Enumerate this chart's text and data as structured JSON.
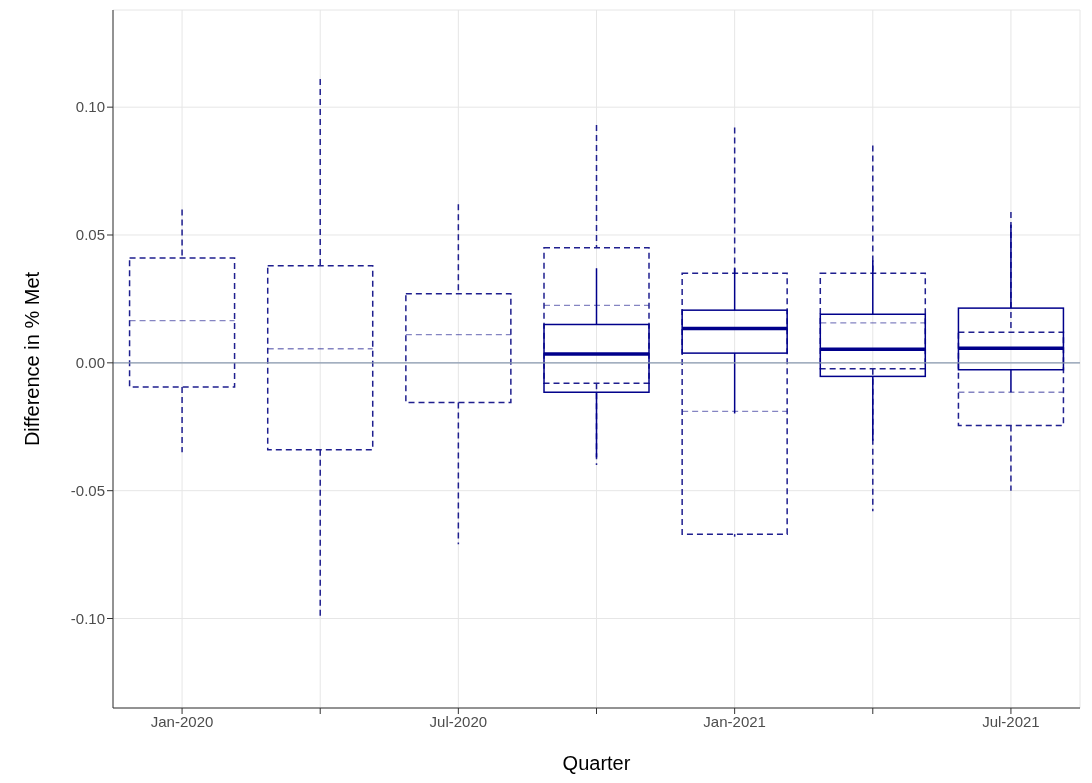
{
  "chart_data": {
    "type": "box",
    "xlabel": "Quarter",
    "ylabel": "Difference in % Met",
    "categories": [
      "Jan-2020",
      null,
      "Jul-2020",
      null,
      "Jan-2021",
      null,
      "Jul-2021"
    ],
    "ylim": [
      -0.135,
      0.138
    ],
    "yticks": [
      {
        "value": -0.1,
        "label": "-0.10"
      },
      {
        "value": -0.05,
        "label": "-0.05"
      },
      {
        "value": 0,
        "label": "0.00"
      },
      {
        "value": 0.05,
        "label": "0.05"
      },
      {
        "value": 0.1,
        "label": "0.10"
      }
    ],
    "grid": true,
    "ref_lines": [
      {
        "axis": "y",
        "value": 0,
        "color": "#8a9ab0"
      }
    ],
    "series": [
      {
        "color": "#1f1f8f",
        "line_style": "dashed",
        "boxes": [
          {
            "low": -0.035,
            "q1": -0.0095,
            "median": 0.0165,
            "q3": 0.041,
            "high": 0.06
          },
          {
            "low": -0.1,
            "q1": -0.034,
            "median": 0.0055,
            "q3": 0.038,
            "high": 0.111
          },
          {
            "low": -0.071,
            "q1": -0.0155,
            "median": 0.011,
            "q3": 0.027,
            "high": 0.062
          },
          {
            "low": -0.04,
            "q1": -0.008,
            "median": 0.0225,
            "q3": 0.045,
            "high": 0.093
          },
          {
            "low": -0.068,
            "q1": -0.067,
            "median": -0.019,
            "q3": 0.035,
            "high": 0.092
          },
          {
            "low": -0.058,
            "q1": -0.0023,
            "median": 0.0156,
            "q3": 0.035,
            "high": 0.085
          },
          {
            "low": -0.05,
            "q1": -0.0245,
            "median": -0.0115,
            "q3": 0.012,
            "high": 0.059
          }
        ]
      },
      {
        "color": "#00008b",
        "line_style": "solid",
        "boxes": [
          null,
          null,
          null,
          {
            "low": -0.037,
            "q1": -0.0115,
            "median": 0.0035,
            "q3": 0.015,
            "high": 0.037
          },
          {
            "low": -0.0198,
            "q1": 0.0038,
            "median": 0.0134,
            "q3": 0.0206,
            "high": 0.037
          },
          {
            "low": -0.0305,
            "q1": -0.0053,
            "median": 0.0053,
            "q3": 0.019,
            "high": 0.04
          },
          {
            "low": -0.0115,
            "q1": -0.0027,
            "median": 0.0057,
            "q3": 0.0214,
            "high": 0.054
          }
        ]
      }
    ]
  }
}
